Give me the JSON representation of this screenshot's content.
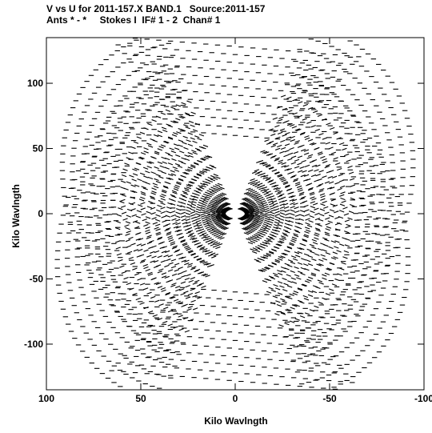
{
  "chart_data": {
    "type": "scatter",
    "title": "V vs U for 2011-157.X BAND.1   Source:2011-157",
    "subtitle": "Ants * - *     Stokes I  IF# 1 - 2  Chan# 1",
    "xlabel": "Kilo Wavlngth",
    "ylabel": "Kilo Wavlngth",
    "xlim": [
      100,
      -100
    ],
    "ylim": [
      -135,
      135
    ],
    "x_ticks": [
      100,
      50,
      0,
      -50,
      -100
    ],
    "y_ticks": [
      100,
      50,
      0,
      -50,
      -100
    ],
    "x_tick_labels": [
      "100",
      "50",
      "0",
      "-50",
      "-100"
    ],
    "y_tick_labels": [
      "100",
      "50",
      "0",
      "-50",
      "-100"
    ],
    "grid": false,
    "series": [
      {
        "description_of_marks": "symmetric uv-coverage tracks (points at (u,v) and (-u,-v))",
        "color": "#000000",
        "tracks": [
          {
            "u_start": 95,
            "u_end": 55,
            "v_start": 10,
            "v_end": 20
          },
          {
            "u_start": 90,
            "u_end": 50,
            "v_start": 5,
            "v_end": 15
          },
          {
            "u_start": 85,
            "u_end": 45,
            "v_start": 0,
            "v_end": 10
          },
          {
            "u_start": 80,
            "u_end": 40,
            "v_start": -5,
            "v_end": 5
          },
          {
            "u_start": 75,
            "u_end": 35,
            "v_start": -10,
            "v_end": 0
          },
          {
            "u_start": 70,
            "u_end": 30,
            "v_start": -15,
            "v_end": -5
          },
          {
            "u_start": 65,
            "u_end": 25,
            "v_start": -20,
            "v_end": -10
          },
          {
            "u_start": 60,
            "u_end": 20,
            "v_start": -25,
            "v_end": -15
          }
        ]
      }
    ]
  }
}
